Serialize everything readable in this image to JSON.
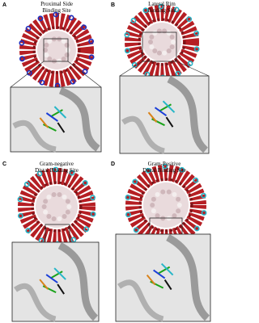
{
  "panels": [
    {
      "label": "A",
      "title": [
        "Proximal Side",
        "Binding Site"
      ]
    },
    {
      "label": "B",
      "title": [
        "Lateral Rim",
        "Binding Site"
      ]
    },
    {
      "label": "C",
      "title": [
        "Gram-negative",
        "Distal Binding Site"
      ]
    },
    {
      "label": "D",
      "title": [
        "Gram-Positive",
        "Distal Binding Site"
      ]
    }
  ]
}
